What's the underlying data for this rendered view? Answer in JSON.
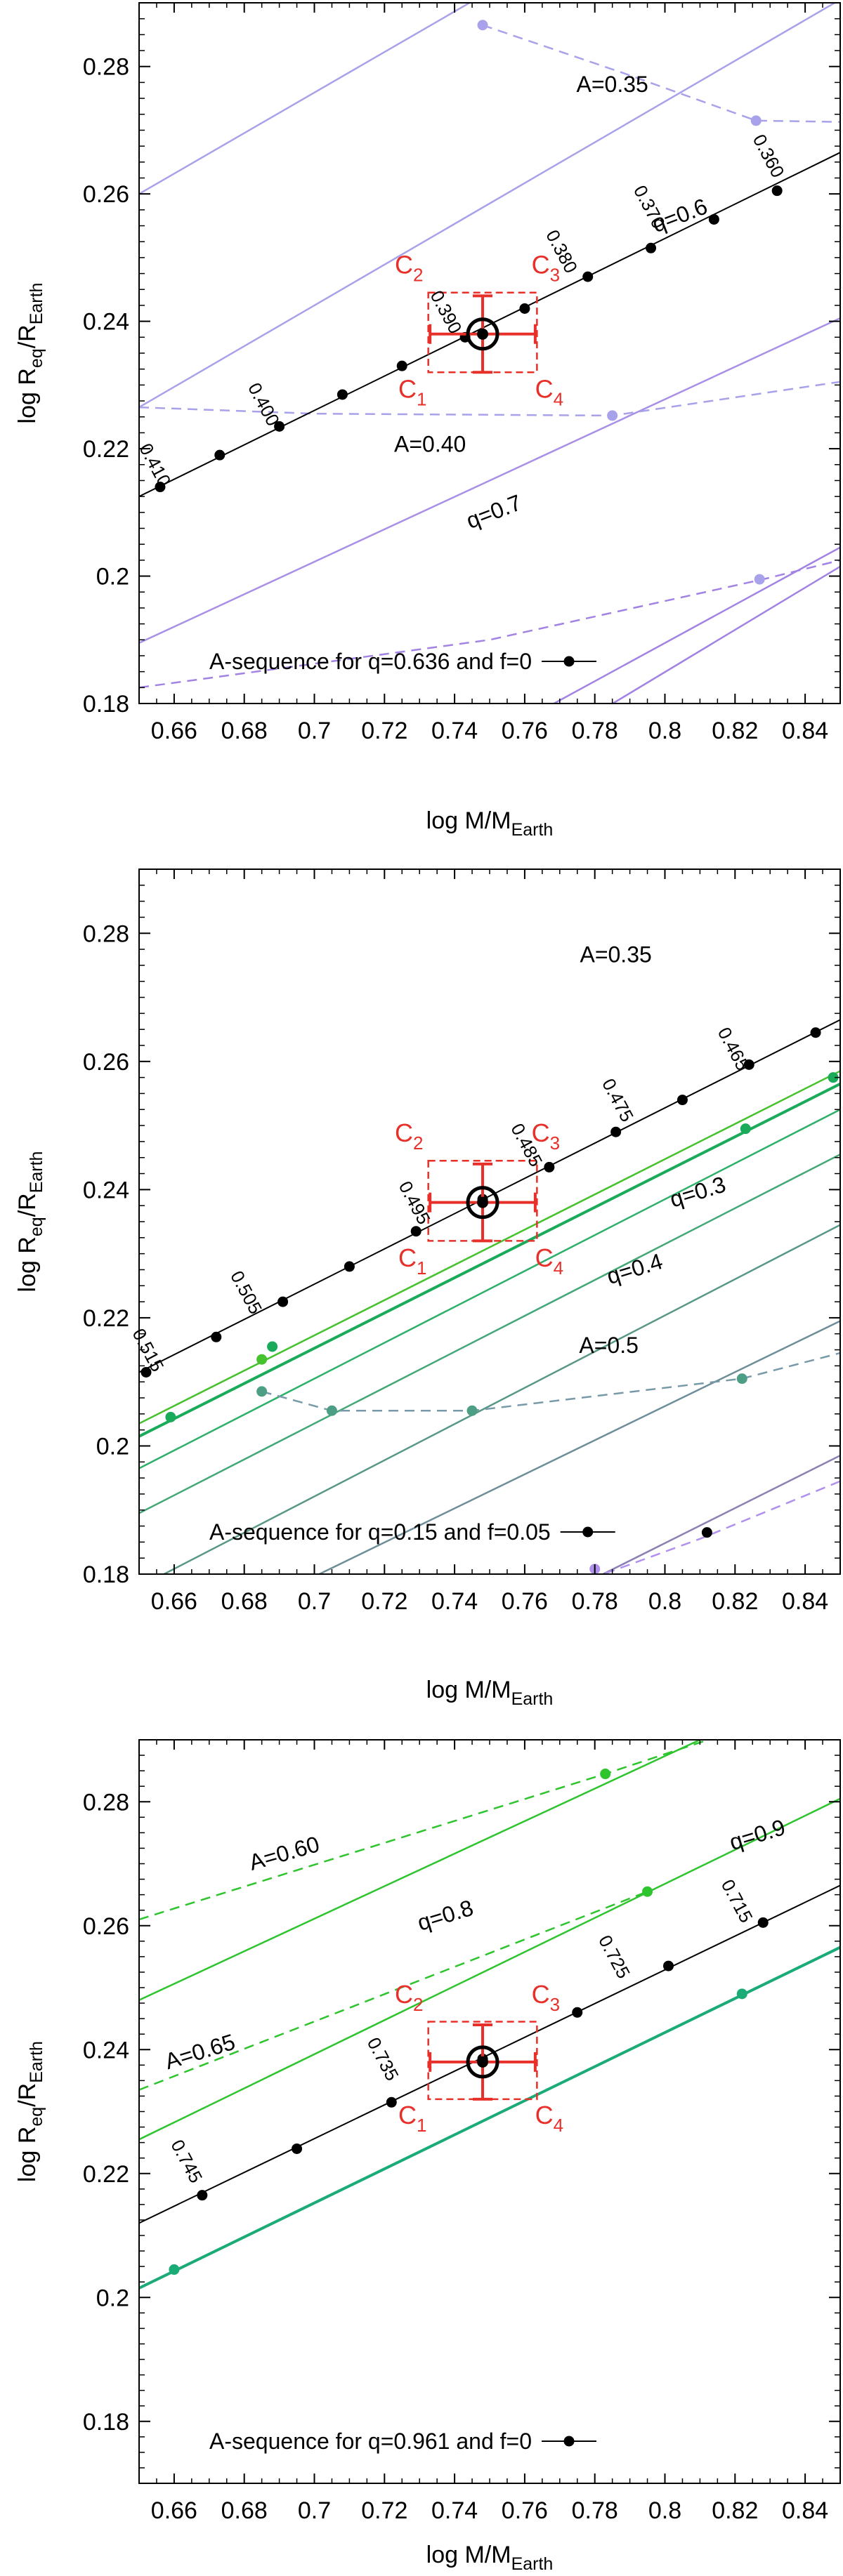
{
  "chart_data": [
    {
      "type": "line",
      "panel": "top",
      "xlabel": "log M/M",
      "xlabel_sub": "Earth",
      "ylabel": "log R",
      "ylabel_sub1": "eq",
      "ylabel_mid": "/R",
      "ylabel_sub2": "Earth",
      "xlim": [
        0.65,
        0.85
      ],
      "ylim": [
        0.18,
        0.29
      ],
      "xticks": [
        0.66,
        0.68,
        0.7,
        0.72,
        0.74,
        0.76,
        0.78,
        0.8,
        0.82,
        0.84
      ],
      "xtick_labels": [
        "0.66",
        "0.68",
        "0.7",
        "0.72",
        "0.74",
        "0.76",
        "0.78",
        "0.8",
        "0.82",
        "0.84"
      ],
      "yticks": [
        0.18,
        0.2,
        0.22,
        0.24,
        0.26,
        0.28
      ],
      "ytick_labels": [
        "0.18",
        "0.2",
        "0.22",
        "0.24",
        "0.26",
        "0.28"
      ],
      "observation": {
        "x": 0.748,
        "y": 0.238,
        "xerr": 0.015,
        "yerr": 0.006
      },
      "box": {
        "x0": 0.7325,
        "x1": 0.7635,
        "y0": 0.232,
        "y1": 0.2445
      },
      "corners": [
        {
          "label": "C",
          "sub": "1",
          "x": 0.728,
          "y": 0.228
        },
        {
          "label": "C",
          "sub": "2",
          "x": 0.727,
          "y": 0.2475
        },
        {
          "label": "C",
          "sub": "3",
          "x": 0.766,
          "y": 0.2475
        },
        {
          "label": "C",
          "sub": "4",
          "x": 0.767,
          "y": 0.228
        }
      ],
      "series": [
        {
          "name": "q-line-1",
          "color": "#a8a2ea",
          "width": 2.5,
          "style": "solid",
          "x": [
            0.65,
            0.76
          ],
          "y": [
            0.26,
            0.295
          ]
        },
        {
          "name": "q=0.6",
          "color": "#a8a2ea",
          "width": 2.5,
          "style": "solid",
          "x": [
            0.65,
            0.85
          ],
          "y": [
            0.2265,
            0.2905
          ]
        },
        {
          "name": "q=0.7",
          "color": "#a890e6",
          "width": 2.5,
          "style": "solid",
          "x": [
            0.65,
            0.85
          ],
          "y": [
            0.1895,
            0.2405
          ]
        },
        {
          "name": "q-line-4",
          "color": "#a283e3",
          "width": 2.5,
          "style": "solid",
          "x": [
            0.65,
            0.85
          ],
          "y": [
            0.1445,
            0.2045
          ]
        },
        {
          "name": "q-line-5",
          "color": "#a283e3",
          "width": 2.5,
          "style": "solid",
          "x": [
            0.77,
            0.85
          ],
          "y": [
            0.175,
            0.2015
          ]
        },
        {
          "name": "A=0.35",
          "color": "#a8a2ea",
          "width": 2.5,
          "style": "dashed",
          "x": [
            0.748,
            0.788,
            0.826,
            0.85
          ],
          "y": [
            0.2865,
            0.279,
            0.2715,
            0.2713
          ]
        },
        {
          "name": "A=0.40",
          "color": "#a8a2ea",
          "width": 2.5,
          "style": "dashed",
          "x": [
            0.65,
            0.7,
            0.785,
            0.85
          ],
          "y": [
            0.2265,
            0.2255,
            0.2252,
            0.2305
          ]
        },
        {
          "name": "A-line-3",
          "color": "#a283e3",
          "width": 2.5,
          "style": "dashed",
          "x": [
            0.65,
            0.75,
            0.828,
            0.85
          ],
          "y": [
            0.1825,
            0.19,
            0.1995,
            0.2025
          ]
        },
        {
          "name": "A-sequence",
          "color": "#000000",
          "width": 2,
          "style": "solid",
          "x": [
            0.65,
            0.85
          ],
          "y": [
            0.2125,
            0.2665
          ]
        }
      ],
      "markers": [
        {
          "color": "#a8a2ea",
          "x": [
            0.748,
            0.826,
            0.785,
            0.827
          ],
          "y": [
            0.2865,
            0.2715,
            0.2252,
            0.1995
          ]
        },
        {
          "color": "#000000",
          "x": [
            0.656,
            0.673,
            0.69,
            0.708,
            0.725,
            0.743,
            0.76,
            0.778,
            0.796,
            0.814,
            0.832
          ],
          "y": [
            0.214,
            0.219,
            0.2235,
            0.2285,
            0.233,
            0.2375,
            0.242,
            0.247,
            0.2515,
            0.256,
            0.2605
          ]
        }
      ],
      "point_labels": [
        {
          "text": "0.410",
          "x": 0.653,
          "y": 0.217,
          "angle": 62
        },
        {
          "text": "0.400",
          "x": 0.684,
          "y": 0.2265,
          "angle": 62
        },
        {
          "text": "0.390",
          "x": 0.736,
          "y": 0.241,
          "angle": 62
        },
        {
          "text": "0.380",
          "x": 0.769,
          "y": 0.2505,
          "angle": 62
        },
        {
          "text": "0.370",
          "x": 0.794,
          "y": 0.2575,
          "angle": 62
        },
        {
          "text": "0.360",
          "x": 0.828,
          "y": 0.2655,
          "angle": 62
        }
      ],
      "annotations": [
        {
          "text": "A=0.35",
          "x": 0.785,
          "y": 0.276,
          "color": "#000000"
        },
        {
          "text": "q=0.6",
          "x": 0.805,
          "y": 0.2555,
          "color": "#000000",
          "angle": -21
        },
        {
          "text": "A=0.40",
          "x": 0.733,
          "y": 0.2195,
          "color": "#000000"
        },
        {
          "text": "q=0.7",
          "x": 0.752,
          "y": 0.209,
          "color": "#000000",
          "angle": -21
        }
      ],
      "legend": {
        "text": "A-sequence for q=0.636 and f=0",
        "color": "#000000"
      }
    },
    {
      "type": "line",
      "panel": "middle",
      "xlabel": "log M/M",
      "xlabel_sub": "Earth",
      "ylabel": "log R",
      "ylabel_sub1": "eq",
      "ylabel_mid": "/R",
      "ylabel_sub2": "Earth",
      "xlim": [
        0.65,
        0.85
      ],
      "ylim": [
        0.18,
        0.29
      ],
      "xticks": [
        0.66,
        0.68,
        0.7,
        0.72,
        0.74,
        0.76,
        0.78,
        0.8,
        0.82,
        0.84
      ],
      "xtick_labels": [
        "0.66",
        "0.68",
        "0.7",
        "0.72",
        "0.74",
        "0.76",
        "0.78",
        "0.8",
        "0.82",
        "0.84"
      ],
      "yticks": [
        0.18,
        0.2,
        0.22,
        0.24,
        0.26,
        0.28
      ],
      "ytick_labels": [
        "0.18",
        "0.2",
        "0.22",
        "0.24",
        "0.26",
        "0.28"
      ],
      "observation": {
        "x": 0.748,
        "y": 0.238,
        "xerr": 0.015,
        "yerr": 0.006
      },
      "box": {
        "x0": 0.7325,
        "x1": 0.7635,
        "y0": 0.232,
        "y1": 0.2445
      },
      "corners": [
        {
          "label": "C",
          "sub": "1",
          "x": 0.728,
          "y": 0.228
        },
        {
          "label": "C",
          "sub": "2",
          "x": 0.727,
          "y": 0.2475
        },
        {
          "label": "C",
          "sub": "3",
          "x": 0.766,
          "y": 0.2475
        },
        {
          "label": "C",
          "sub": "4",
          "x": 0.767,
          "y": 0.228
        }
      ],
      "series": [
        {
          "name": "green-1",
          "color": "#46c22e",
          "width": 2.5,
          "style": "solid",
          "x": [
            0.65,
            0.85
          ],
          "y": [
            0.2035,
            0.2585
          ]
        },
        {
          "name": "green-2",
          "color": "#1aab5a",
          "width": 4,
          "style": "solid",
          "x": [
            0.65,
            0.85
          ],
          "y": [
            0.2015,
            0.2565
          ]
        },
        {
          "name": "green-3",
          "color": "#2eb06a",
          "width": 2.5,
          "style": "solid",
          "x": [
            0.65,
            0.85
          ],
          "y": [
            0.1965,
            0.2525
          ]
        },
        {
          "name": "q=0.3",
          "color": "#44a778",
          "width": 2.5,
          "style": "solid",
          "x": [
            0.65,
            0.85
          ],
          "y": [
            0.1895,
            0.2455
          ]
        },
        {
          "name": "q=0.4",
          "color": "#579787",
          "width": 2.5,
          "style": "solid",
          "x": [
            0.65,
            0.85
          ],
          "y": [
            0.178,
            0.2345
          ]
        },
        {
          "name": "q-line-6",
          "color": "#6d8e99",
          "width": 2.5,
          "style": "solid",
          "x": [
            0.692,
            0.85
          ],
          "y": [
            0.1775,
            0.2195
          ]
        },
        {
          "name": "q-line-7",
          "color": "#8c7fb4",
          "width": 2.5,
          "style": "solid",
          "x": [
            0.775,
            0.85
          ],
          "y": [
            0.178,
            0.1985
          ]
        },
        {
          "name": "A=0.5",
          "color": "#789aa8",
          "width": 2.5,
          "style": "dashed",
          "x": [
            0.685,
            0.705,
            0.745,
            0.822,
            0.85
          ],
          "y": [
            0.2085,
            0.2055,
            0.2055,
            0.2105,
            0.2145
          ]
        },
        {
          "name": "A-line-2",
          "color": "#b191ed",
          "width": 2.5,
          "style": "dashed",
          "x": [
            0.77,
            0.81,
            0.85
          ],
          "y": [
            0.1775,
            0.1855,
            0.1945
          ]
        },
        {
          "name": "A-sequence",
          "color": "#000000",
          "width": 2,
          "style": "solid",
          "x": [
            0.65,
            0.85
          ],
          "y": [
            0.2115,
            0.2665
          ]
        }
      ],
      "markers": [
        {
          "color": "#000000",
          "x": [
            0.652,
            0.672,
            0.691,
            0.71,
            0.729,
            0.748,
            0.767,
            0.786,
            0.805,
            0.824,
            0.843
          ],
          "y": [
            0.2115,
            0.217,
            0.2225,
            0.228,
            0.2335,
            0.2385,
            0.2435,
            0.249,
            0.254,
            0.2595,
            0.2645
          ]
        },
        {
          "color": "#1aab5a",
          "x": [
            0.659,
            0.688,
            0.823,
            0.848
          ],
          "y": [
            0.2045,
            0.2155,
            0.2495,
            0.2575
          ]
        },
        {
          "color": "#46c22e",
          "x": [
            0.685
          ],
          "y": [
            0.2135
          ]
        },
        {
          "color": "#4c9e84",
          "x": [
            0.685,
            0.705,
            0.745,
            0.822
          ],
          "y": [
            0.2085,
            0.2055,
            0.2055,
            0.2105
          ]
        },
        {
          "color": "#b191ed",
          "x": [
            0.78
          ],
          "y": [
            0.1808
          ]
        },
        {
          "color": "#000000",
          "x": [
            0.812
          ],
          "y": [
            0.1865
          ]
        }
      ],
      "point_labels": [
        {
          "text": "0.515",
          "x": 0.651,
          "y": 0.2145,
          "angle": 62
        },
        {
          "text": "0.505",
          "x": 0.679,
          "y": 0.2235,
          "angle": 62
        },
        {
          "text": "0.495",
          "x": 0.727,
          "y": 0.2375,
          "angle": 62
        },
        {
          "text": "0.485",
          "x": 0.759,
          "y": 0.2465,
          "angle": 62
        },
        {
          "text": "0.475",
          "x": 0.785,
          "y": 0.2535,
          "angle": 62
        },
        {
          "text": "0.465",
          "x": 0.818,
          "y": 0.2615,
          "angle": 62
        }
      ],
      "annotations": [
        {
          "text": "A=0.35",
          "x": 0.786,
          "y": 0.2755,
          "color": "#000000"
        },
        {
          "text": "q=0.3",
          "x": 0.81,
          "y": 0.2385,
          "color": "#000000",
          "angle": -17
        },
        {
          "text": "q=0.4",
          "x": 0.792,
          "y": 0.2265,
          "color": "#000000",
          "angle": -17
        },
        {
          "text": "A=0.5",
          "x": 0.784,
          "y": 0.2145,
          "color": "#000000"
        }
      ],
      "legend": {
        "text": "A-sequence for q=0.15 and f=0.05",
        "color": "#000000"
      }
    },
    {
      "type": "line",
      "panel": "bottom",
      "xlabel": "log M/M",
      "xlabel_sub": "Earth",
      "ylabel": "log R",
      "ylabel_sub1": "eq",
      "ylabel_mid": "/R",
      "ylabel_sub2": "Earth",
      "xlim": [
        0.65,
        0.85
      ],
      "ylim": [
        0.17,
        0.29
      ],
      "xticks": [
        0.66,
        0.68,
        0.7,
        0.72,
        0.74,
        0.76,
        0.78,
        0.8,
        0.82,
        0.84
      ],
      "xtick_labels": [
        "0.66",
        "0.68",
        "0.7",
        "0.72",
        "0.74",
        "0.76",
        "0.78",
        "0.8",
        "0.82",
        "0.84"
      ],
      "yticks": [
        0.18,
        0.2,
        0.22,
        0.24,
        0.26,
        0.28
      ],
      "ytick_labels": [
        "0.18",
        "0.2",
        "0.22",
        "0.24",
        "0.26",
        "0.28"
      ],
      "observation": {
        "x": 0.748,
        "y": 0.238,
        "xerr": 0.015,
        "yerr": 0.006
      },
      "box": {
        "x0": 0.7325,
        "x1": 0.7635,
        "y0": 0.232,
        "y1": 0.2445
      },
      "corners": [
        {
          "label": "C",
          "sub": "1",
          "x": 0.728,
          "y": 0.228
        },
        {
          "label": "C",
          "sub": "2",
          "x": 0.727,
          "y": 0.2475
        },
        {
          "label": "C",
          "sub": "3",
          "x": 0.766,
          "y": 0.2475
        },
        {
          "label": "C",
          "sub": "4",
          "x": 0.767,
          "y": 0.228
        }
      ],
      "series": [
        {
          "name": "q-top",
          "color": "#2ec42e",
          "width": 2.5,
          "style": "solid",
          "x": [
            0.65,
            0.81
          ],
          "y": [
            0.248,
            0.29
          ]
        },
        {
          "name": "q=0.9",
          "color": "#2ec42e",
          "width": 2.5,
          "style": "solid",
          "x": [
            0.65,
            0.85
          ],
          "y": [
            0.2255,
            0.2805
          ]
        },
        {
          "name": "q-thick",
          "color": "#1aab77",
          "width": 4,
          "style": "solid",
          "x": [
            0.65,
            0.85
          ],
          "y": [
            0.2015,
            0.2565
          ]
        },
        {
          "name": "A=0.60",
          "color": "#2ec42e",
          "width": 2.5,
          "style": "dashed",
          "x": [
            0.65,
            0.783,
            0.815
          ],
          "y": [
            0.261,
            0.2845,
            0.2905
          ]
        },
        {
          "name": "A=0.65",
          "color": "#2ec42e",
          "width": 2.5,
          "style": "dashed",
          "x": [
            0.65,
            0.795
          ],
          "y": [
            0.2335,
            0.2655
          ]
        },
        {
          "name": "A-sequence",
          "color": "#000000",
          "width": 2,
          "style": "solid",
          "x": [
            0.65,
            0.85
          ],
          "y": [
            0.212,
            0.2665
          ]
        }
      ],
      "markers": [
        {
          "color": "#000000",
          "x": [
            0.668,
            0.695,
            0.722,
            0.748,
            0.775,
            0.801,
            0.828
          ],
          "y": [
            0.2165,
            0.224,
            0.2315,
            0.2385,
            0.246,
            0.2535,
            0.2605
          ]
        },
        {
          "color": "#2ec42e",
          "x": [
            0.783,
            0.795
          ],
          "y": [
            0.2845,
            0.2655
          ]
        },
        {
          "color": "#1aab77",
          "x": [
            0.66,
            0.822
          ],
          "y": [
            0.2045,
            0.249
          ]
        }
      ],
      "point_labels": [
        {
          "text": "0.745",
          "x": 0.662,
          "y": 0.2215,
          "angle": 62
        },
        {
          "text": "0.735",
          "x": 0.718,
          "y": 0.238,
          "angle": 62
        },
        {
          "text": "0.725",
          "x": 0.784,
          "y": 0.2545,
          "angle": 62
        },
        {
          "text": "0.715",
          "x": 0.819,
          "y": 0.2635,
          "angle": 62
        }
      ],
      "annotations": [
        {
          "text": "A=0.60",
          "x": 0.692,
          "y": 0.2705,
          "color": "#000000",
          "angle": -16
        },
        {
          "text": "q=0.8",
          "x": 0.738,
          "y": 0.2605,
          "color": "#000000",
          "angle": -17
        },
        {
          "text": "q=0.9",
          "x": 0.827,
          "y": 0.2735,
          "color": "#000000",
          "angle": -17
        },
        {
          "text": "A=0.65",
          "x": 0.668,
          "y": 0.2385,
          "color": "#000000",
          "angle": -17
        }
      ],
      "legend": {
        "text": "A-sequence for q=0.961 and f=0",
        "color": "#000000"
      }
    }
  ]
}
